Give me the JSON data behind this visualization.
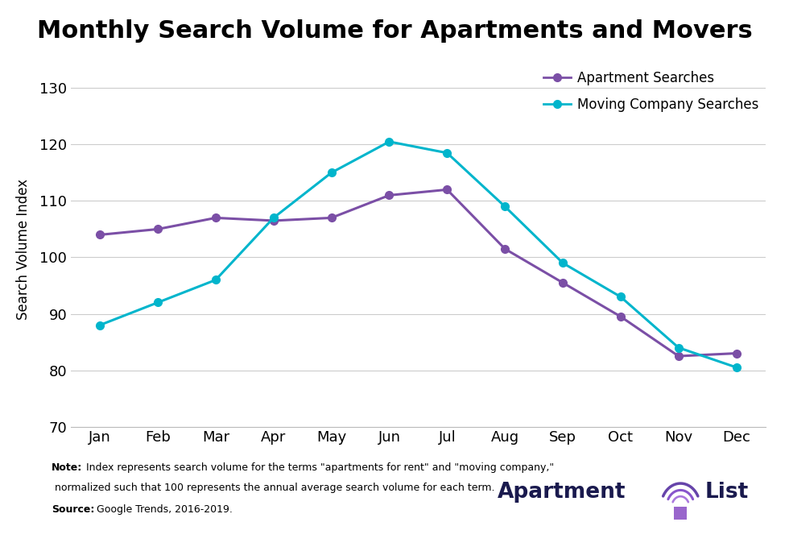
{
  "title": "Monthly Search Volume for Apartments and Movers",
  "months": [
    "Jan",
    "Feb",
    "Mar",
    "Apr",
    "May",
    "Jun",
    "Jul",
    "Aug",
    "Sep",
    "Oct",
    "Nov",
    "Dec"
  ],
  "apartment_searches": [
    104,
    105,
    107,
    106.5,
    107,
    111,
    112,
    101.5,
    95.5,
    89.5,
    82.5,
    83
  ],
  "moving_searches": [
    88,
    92,
    96,
    107,
    115,
    120.5,
    118.5,
    109,
    99,
    93,
    84,
    80.5
  ],
  "apartment_color": "#7B4FA6",
  "moving_color": "#00B5CC",
  "ylim": [
    70,
    133
  ],
  "yticks": [
    70,
    80,
    90,
    100,
    110,
    120,
    130
  ],
  "ylabel": "Search Volume Index",
  "legend_apartment": "Apartment Searches",
  "legend_moving": "Moving Company Searches",
  "note_bold": "Note:",
  "note_text": " Index represents search volume for the terms \"apartments for rent\" and \"moving company,\"",
  "note_text2": " normalized such that 100 represents the annual average search volume for each term.",
  "source_bold": "Source:",
  "source_text": " Google Trends, 2016-2019.",
  "background_color": "#ffffff",
  "grid_color": "#cccccc",
  "title_fontsize": 22,
  "axis_label_fontsize": 12,
  "tick_fontsize": 13,
  "legend_fontsize": 12,
  "note_fontsize": 9,
  "logo_color": "#1a1a4e"
}
